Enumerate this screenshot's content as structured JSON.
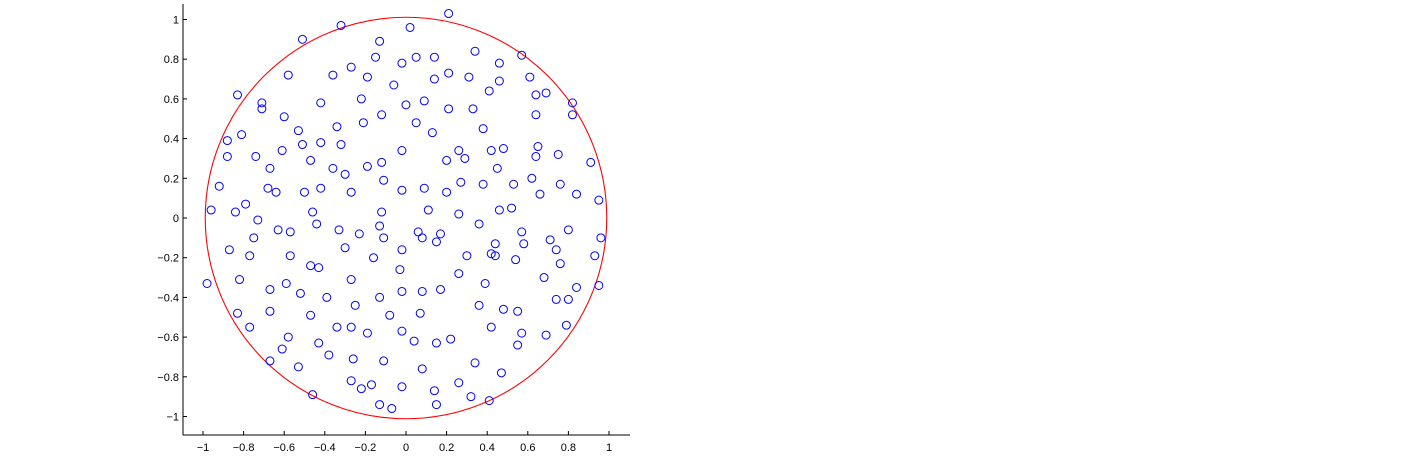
{
  "chart_data": {
    "type": "scatter",
    "title": "",
    "xlabel": "",
    "ylabel": "",
    "xlim": [
      -1.1,
      1.1
    ],
    "ylim": [
      -1.1,
      1.05
    ],
    "grid": false,
    "x_ticks": [
      -1,
      -0.8,
      -0.6,
      -0.4,
      -0.2,
      0,
      0.2,
      0.4,
      0.6,
      0.8,
      1
    ],
    "x_tick_labels": [
      "−1",
      "−0.8",
      "−0.6",
      "−0.4",
      "−0.2",
      "0",
      "0.2",
      "0.4",
      "0.6",
      "0.8",
      "1"
    ],
    "y_ticks": [
      1,
      0.8,
      0.6,
      0.4,
      0.2,
      0,
      -0.2,
      -0.4,
      -0.6,
      -0.8,
      -1
    ],
    "y_tick_labels": [
      "1",
      "0.8",
      "0.6",
      "0.4",
      "0.2",
      "0",
      "−0.2",
      "−0.4",
      "−0.6",
      "−0.8",
      "−1"
    ],
    "circle": {
      "center": [
        0,
        0
      ],
      "radius": 1,
      "color": "#ff0000"
    },
    "marker": {
      "shape": "open-circle",
      "color": "#0000ff"
    },
    "series": [
      {
        "points": [
          [
            0.21,
            1.03
          ],
          [
            -0.32,
            0.97
          ],
          [
            0.02,
            0.96
          ],
          [
            -0.51,
            0.9
          ],
          [
            -0.13,
            0.89
          ],
          [
            0.34,
            0.84
          ],
          [
            0.57,
            0.82
          ],
          [
            -0.15,
            0.81
          ],
          [
            0.05,
            0.81
          ],
          [
            0.14,
            0.81
          ],
          [
            -0.27,
            0.76
          ],
          [
            -0.02,
            0.78
          ],
          [
            0.46,
            0.78
          ],
          [
            -0.58,
            0.72
          ],
          [
            -0.36,
            0.72
          ],
          [
            -0.19,
            0.71
          ],
          [
            0.21,
            0.73
          ],
          [
            0.31,
            0.71
          ],
          [
            0.46,
            0.69
          ],
          [
            0.61,
            0.71
          ],
          [
            -0.06,
            0.67
          ],
          [
            0.14,
            0.7
          ],
          [
            0.41,
            0.64
          ],
          [
            0.69,
            0.63
          ],
          [
            -0.83,
            0.62
          ],
          [
            -0.71,
            0.58
          ],
          [
            0.82,
            0.58
          ],
          [
            -0.42,
            0.58
          ],
          [
            -0.22,
            0.6
          ],
          [
            0.0,
            0.57
          ],
          [
            0.64,
            0.62
          ],
          [
            -0.71,
            0.55
          ],
          [
            -0.6,
            0.51
          ],
          [
            0.09,
            0.59
          ],
          [
            0.21,
            0.55
          ],
          [
            0.33,
            0.55
          ],
          [
            0.64,
            0.52
          ],
          [
            0.82,
            0.52
          ],
          [
            -0.12,
            0.52
          ],
          [
            0.05,
            0.48
          ],
          [
            -0.34,
            0.46
          ],
          [
            0.38,
            0.45
          ],
          [
            -0.53,
            0.44
          ],
          [
            -0.81,
            0.42
          ],
          [
            -0.88,
            0.39
          ],
          [
            -0.21,
            0.48
          ],
          [
            0.13,
            0.43
          ],
          [
            -0.51,
            0.37
          ],
          [
            -0.32,
            0.37
          ],
          [
            0.29,
            0.3
          ],
          [
            0.65,
            0.36
          ],
          [
            -0.61,
            0.34
          ],
          [
            -0.42,
            0.38
          ],
          [
            0.26,
            0.34
          ],
          [
            0.42,
            0.34
          ],
          [
            0.48,
            0.35
          ],
          [
            0.75,
            0.32
          ],
          [
            -0.88,
            0.31
          ],
          [
            -0.74,
            0.31
          ],
          [
            -0.47,
            0.29
          ],
          [
            -0.02,
            0.34
          ],
          [
            0.2,
            0.29
          ],
          [
            0.64,
            0.31
          ],
          [
            0.91,
            0.28
          ],
          [
            -0.67,
            0.25
          ],
          [
            -0.12,
            0.28
          ],
          [
            -0.19,
            0.26
          ],
          [
            0.45,
            0.25
          ],
          [
            -0.36,
            0.25
          ],
          [
            -0.3,
            0.22
          ],
          [
            0.62,
            0.2
          ],
          [
            -0.92,
            0.16
          ],
          [
            -0.68,
            0.15
          ],
          [
            -0.64,
            0.13
          ],
          [
            -0.5,
            0.13
          ],
          [
            -0.42,
            0.15
          ],
          [
            -0.11,
            0.19
          ],
          [
            0.27,
            0.18
          ],
          [
            0.38,
            0.17
          ],
          [
            0.53,
            0.17
          ],
          [
            0.76,
            0.17
          ],
          [
            -0.27,
            0.13
          ],
          [
            -0.02,
            0.14
          ],
          [
            0.09,
            0.15
          ],
          [
            0.2,
            0.13
          ],
          [
            0.66,
            0.12
          ],
          [
            0.84,
            0.12
          ],
          [
            0.95,
            0.09
          ],
          [
            -0.79,
            0.07
          ],
          [
            -0.96,
            0.04
          ],
          [
            -0.84,
            0.03
          ],
          [
            -0.46,
            0.03
          ],
          [
            -0.12,
            0.03
          ],
          [
            0.11,
            0.04
          ],
          [
            0.26,
            0.02
          ],
          [
            0.46,
            0.04
          ],
          [
            0.52,
            0.05
          ],
          [
            -0.73,
            -0.01
          ],
          [
            -0.44,
            -0.03
          ],
          [
            -0.33,
            -0.06
          ],
          [
            -0.13,
            -0.04
          ],
          [
            0.06,
            -0.07
          ],
          [
            0.17,
            -0.08
          ],
          [
            0.36,
            -0.03
          ],
          [
            0.57,
            -0.07
          ],
          [
            0.8,
            -0.06
          ],
          [
            -0.63,
            -0.06
          ],
          [
            -0.57,
            -0.07
          ],
          [
            -0.75,
            -0.1
          ],
          [
            -0.23,
            -0.08
          ],
          [
            -0.11,
            -0.1
          ],
          [
            0.08,
            -0.1
          ],
          [
            0.15,
            -0.12
          ],
          [
            0.44,
            -0.13
          ],
          [
            0.58,
            -0.13
          ],
          [
            0.71,
            -0.11
          ],
          [
            0.96,
            -0.1
          ],
          [
            -0.87,
            -0.16
          ],
          [
            -0.57,
            -0.19
          ],
          [
            -0.3,
            -0.15
          ],
          [
            -0.02,
            -0.16
          ],
          [
            0.42,
            -0.18
          ],
          [
            0.74,
            -0.16
          ],
          [
            -0.77,
            -0.19
          ],
          [
            -0.16,
            -0.2
          ],
          [
            0.3,
            -0.19
          ],
          [
            0.44,
            -0.19
          ],
          [
            0.54,
            -0.21
          ],
          [
            0.93,
            -0.19
          ],
          [
            -0.47,
            -0.24
          ],
          [
            -0.43,
            -0.25
          ],
          [
            0.76,
            -0.23
          ],
          [
            -0.03,
            -0.26
          ],
          [
            0.26,
            -0.28
          ],
          [
            -0.82,
            -0.31
          ],
          [
            -0.27,
            -0.31
          ],
          [
            -0.98,
            -0.33
          ],
          [
            -0.59,
            -0.33
          ],
          [
            -0.02,
            -0.37
          ],
          [
            0.08,
            -0.37
          ],
          [
            0.39,
            -0.33
          ],
          [
            0.68,
            -0.3
          ],
          [
            0.95,
            -0.34
          ],
          [
            -0.67,
            -0.36
          ],
          [
            -0.52,
            -0.38
          ],
          [
            -0.39,
            -0.4
          ],
          [
            -0.13,
            -0.4
          ],
          [
            0.17,
            -0.36
          ],
          [
            0.84,
            -0.35
          ],
          [
            0.74,
            -0.41
          ],
          [
            0.8,
            -0.41
          ],
          [
            -0.25,
            -0.44
          ],
          [
            0.36,
            -0.44
          ],
          [
            -0.67,
            -0.47
          ],
          [
            -0.47,
            -0.49
          ],
          [
            -0.08,
            -0.49
          ],
          [
            0.07,
            -0.48
          ],
          [
            0.48,
            -0.46
          ],
          [
            0.55,
            -0.47
          ],
          [
            -0.83,
            -0.48
          ],
          [
            -0.77,
            -0.55
          ],
          [
            -0.34,
            -0.55
          ],
          [
            -0.27,
            -0.55
          ],
          [
            0.42,
            -0.55
          ],
          [
            0.79,
            -0.54
          ],
          [
            -0.58,
            -0.6
          ],
          [
            -0.19,
            -0.58
          ],
          [
            -0.02,
            -0.57
          ],
          [
            0.22,
            -0.61
          ],
          [
            0.57,
            -0.58
          ],
          [
            0.69,
            -0.59
          ],
          [
            -0.61,
            -0.66
          ],
          [
            -0.43,
            -0.63
          ],
          [
            0.04,
            -0.62
          ],
          [
            0.15,
            -0.63
          ],
          [
            0.55,
            -0.64
          ],
          [
            -0.67,
            -0.72
          ],
          [
            -0.53,
            -0.75
          ],
          [
            -0.38,
            -0.69
          ],
          [
            -0.26,
            -0.71
          ],
          [
            -0.11,
            -0.72
          ],
          [
            0.08,
            -0.76
          ],
          [
            0.34,
            -0.73
          ],
          [
            0.47,
            -0.78
          ],
          [
            -0.27,
            -0.82
          ],
          [
            -0.17,
            -0.84
          ],
          [
            -0.22,
            -0.86
          ],
          [
            -0.02,
            -0.85
          ],
          [
            0.26,
            -0.83
          ],
          [
            0.14,
            -0.87
          ],
          [
            -0.46,
            -0.89
          ],
          [
            0.32,
            -0.9
          ],
          [
            0.41,
            -0.92
          ],
          [
            -0.13,
            -0.94
          ],
          [
            -0.07,
            -0.96
          ],
          [
            0.15,
            -0.94
          ]
        ]
      }
    ]
  }
}
